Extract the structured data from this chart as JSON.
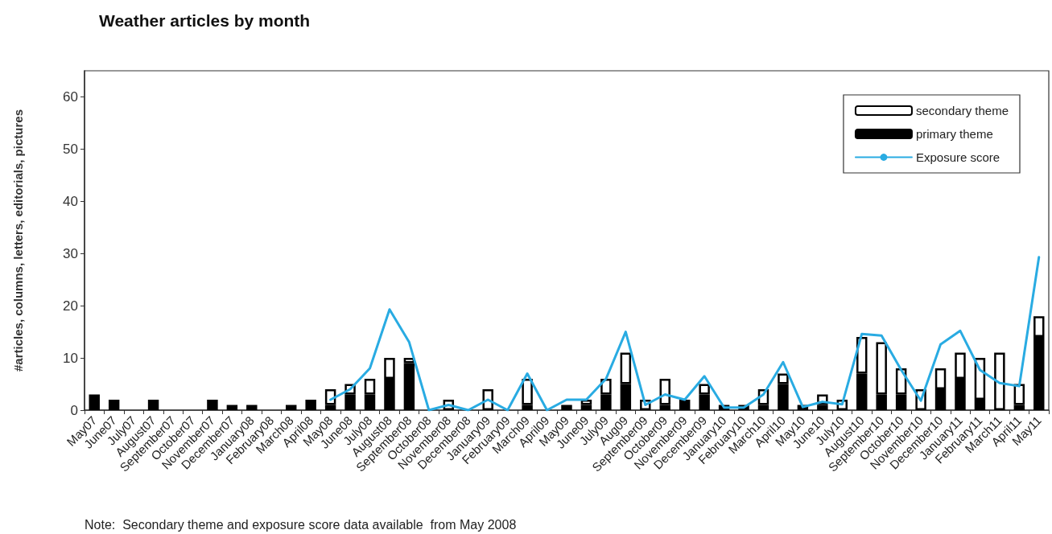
{
  "chart_data": {
    "type": "bar",
    "title": "Weather articles by month",
    "ylabel": "#articles, columns, letters, editorials, pictures",
    "categories": [
      "May07",
      "June07",
      "July07",
      "August07",
      "September07",
      "October07",
      "November07",
      "December07",
      "January08",
      "February08",
      "March08",
      "April08",
      "May08",
      "June08",
      "July08",
      "August08",
      "September08",
      "October08",
      "November08",
      "December08",
      "January09",
      "February09",
      "March09",
      "April09",
      "May09",
      "June09",
      "July09",
      "Aug09",
      "September09",
      "October09",
      "November09",
      "December09",
      "January10",
      "February10",
      "March10",
      "April10",
      "May10",
      "June10",
      "July10",
      "August10",
      "September10",
      "October10",
      "November10",
      "December10",
      "January11",
      "February11",
      "March11",
      "April11",
      "May11"
    ],
    "stacked": true,
    "series": [
      {
        "name": "primary theme",
        "color": "#000000",
        "values": [
          3,
          2,
          0,
          2,
          0,
          0,
          2,
          1,
          1,
          0,
          1,
          2,
          1,
          3,
          3,
          6,
          9,
          0,
          0,
          0,
          0,
          0,
          1,
          0,
          1,
          1,
          3,
          5,
          0,
          1,
          2,
          3,
          1,
          1,
          1,
          5,
          1,
          1,
          0,
          7,
          3,
          3,
          0,
          4,
          6,
          2,
          0,
          1,
          14
        ]
      },
      {
        "name": "secondary theme",
        "color": "#ffffff",
        "values": [
          null,
          null,
          null,
          null,
          null,
          null,
          null,
          null,
          null,
          null,
          null,
          null,
          3,
          2,
          3,
          4,
          1,
          0,
          2,
          0,
          4,
          0,
          5,
          0,
          0,
          1,
          3,
          6,
          2,
          5,
          0,
          2,
          0,
          0,
          3,
          2,
          0,
          2,
          2,
          7,
          10,
          5,
          4,
          4,
          5,
          8,
          11,
          4,
          4
        ]
      },
      {
        "name": "Exposure score",
        "type": "line",
        "color": "#29abe2",
        "values": [
          null,
          null,
          null,
          null,
          null,
          null,
          null,
          null,
          null,
          null,
          null,
          null,
          2,
          4,
          8,
          19.3,
          13,
          0,
          1,
          0,
          2,
          0,
          7,
          0,
          2,
          2,
          6,
          15,
          1,
          3,
          2,
          6.5,
          0.5,
          0.5,
          3,
          9.2,
          0.6,
          1.6,
          1.1,
          14.6,
          14.3,
          7.7,
          1.8,
          12.6,
          15.2,
          7.7,
          5.2,
          4.6,
          29.3
        ]
      }
    ],
    "ylim": [
      0,
      65
    ],
    "yticks": [
      0,
      10,
      20,
      30,
      40,
      50,
      60
    ],
    "grid": false,
    "legend": "top right",
    "marker": "none",
    "line_style": "solid",
    "annotations": [
      "Note:  Secondary theme and exposure score data available  from May 2008"
    ]
  }
}
